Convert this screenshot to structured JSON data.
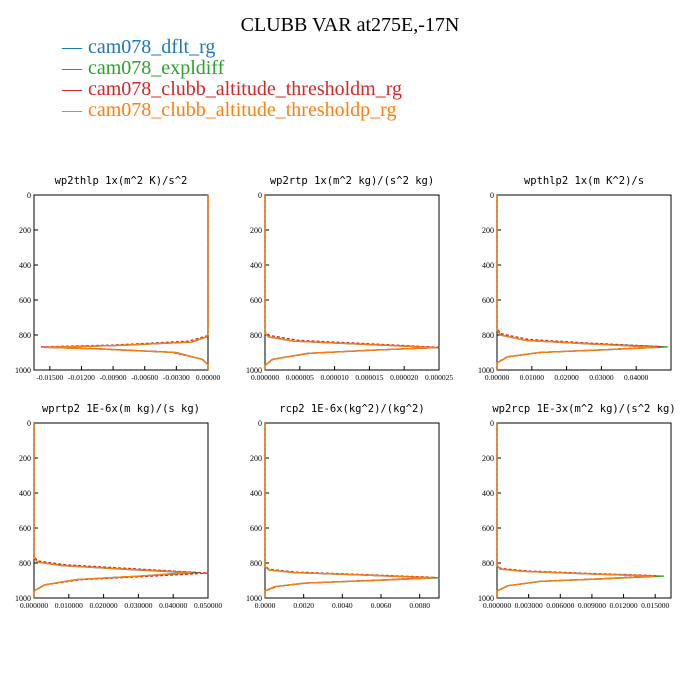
{
  "title": "CLUBB VAR at275E,-17N",
  "legend": [
    {
      "label": "cam078_dflt_rg",
      "color": "#1f77b4"
    },
    {
      "label": "cam078_expldiff",
      "color": "#2ca02c"
    },
    {
      "label": "cam078_clubb_altitude_thresholdm_rg",
      "color": "#d62728"
    },
    {
      "label": "cam078_clubb_altitude_thresholdp_rg",
      "color": "#ff7f0e"
    }
  ],
  "chart_data": [
    {
      "type": "line",
      "title": "wp2thlp  1x(m^2 K)/s^2",
      "xlim": [
        -0.0165,
        0.0
      ],
      "ylim": [
        0,
        1000
      ],
      "xticks": [
        -0.015,
        -0.012,
        -0.009,
        -0.006,
        -0.003,
        0.0
      ],
      "xticklabels": [
        "-0.01500",
        "-0.01200",
        "-0.00900",
        "-0.00600",
        "-0.00300",
        "0.00000"
      ],
      "yticks": [
        0,
        200,
        400,
        600,
        800,
        1000
      ],
      "series": [
        {
          "name": "cam078_dflt_rg",
          "x": [
            0,
            0,
            -0.0001,
            -0.0015,
            -0.0085,
            -0.0152,
            -0.01,
            -0.003,
            -0.0005,
            0,
            0
          ],
          "y": [
            0,
            790,
            810,
            840,
            860,
            870,
            880,
            900,
            940,
            970,
            1000
          ]
        },
        {
          "name": "cam078_expldiff",
          "x": [
            0,
            0,
            -0.0001,
            -0.0015,
            -0.0088,
            -0.0155,
            -0.0105,
            -0.0032,
            -0.0005,
            0,
            0
          ],
          "y": [
            0,
            790,
            810,
            840,
            860,
            870,
            880,
            900,
            940,
            970,
            1000
          ]
        },
        {
          "name": "cam078_clubb_altitude_thresholdm_rg",
          "x": [
            0,
            0,
            -0.0001,
            -0.0018,
            -0.009,
            -0.0158,
            -0.0108,
            -0.0035,
            -0.0006,
            0,
            0
          ],
          "y": [
            0,
            785,
            805,
            835,
            858,
            868,
            878,
            898,
            938,
            968,
            1000
          ]
        },
        {
          "name": "cam078_clubb_altitude_thresholdp_rg",
          "x": [
            0,
            0,
            -0.0001,
            -0.0016,
            -0.0087,
            -0.0154,
            -0.0103,
            -0.0031,
            -0.0005,
            0,
            0
          ],
          "y": [
            0,
            790,
            810,
            840,
            860,
            870,
            880,
            900,
            940,
            970,
            1000
          ]
        }
      ]
    },
    {
      "type": "line",
      "title": "wp2rtp  1x(m^2 kg)/(s^2 kg)",
      "xlim": [
        0.0,
        2.5e-05
      ],
      "ylim": [
        0,
        1000
      ],
      "xticks": [
        0.0,
        5e-06,
        1e-05,
        1.5e-05,
        2e-05,
        2.5e-05
      ],
      "xticklabels": [
        "0.000000",
        "0.000005",
        "0.000010",
        "0.000015",
        "0.000020",
        "0.000025"
      ],
      "yticks": [
        0,
        200,
        400,
        600,
        800,
        1000
      ],
      "series": [
        {
          "name": "cam078_dflt_rg",
          "x": [
            0,
            0,
            5e-07,
            4e-06,
            1.5e-05,
            2.45e-05,
            1.6e-05,
            6e-06,
            1e-06,
            0,
            0
          ],
          "y": [
            0,
            790,
            810,
            835,
            855,
            872,
            885,
            905,
            940,
            975,
            1000
          ]
        },
        {
          "name": "cam078_expldiff",
          "x": [
            0,
            0,
            5e-07,
            4.2e-06,
            1.52e-05,
            2.48e-05,
            1.65e-05,
            6.2e-06,
            1e-06,
            0,
            0
          ],
          "y": [
            0,
            790,
            810,
            835,
            855,
            872,
            885,
            905,
            940,
            975,
            1000
          ]
        },
        {
          "name": "cam078_clubb_altitude_thresholdm_rg",
          "x": [
            0,
            0,
            6e-07,
            4.8e-06,
            1.58e-05,
            2.52e-05,
            1.7e-05,
            6.6e-06,
            1.2e-06,
            0,
            0
          ],
          "y": [
            0,
            780,
            802,
            830,
            852,
            870,
            884,
            904,
            938,
            972,
            1000
          ]
        },
        {
          "name": "cam078_clubb_altitude_thresholdp_rg",
          "x": [
            0,
            0,
            5e-07,
            4.1e-06,
            1.51e-05,
            2.46e-05,
            1.62e-05,
            6.1e-06,
            1e-06,
            0,
            0
          ],
          "y": [
            0,
            790,
            810,
            835,
            855,
            872,
            885,
            905,
            940,
            975,
            1000
          ]
        }
      ]
    },
    {
      "type": "line",
      "title": "wpthlp2  1x(m K^2)/s",
      "xlim": [
        0.0,
        0.05
      ],
      "ylim": [
        0,
        1000
      ],
      "xticks": [
        0.0,
        0.01,
        0.02,
        0.03,
        0.04
      ],
      "xticklabels": [
        "0.00000",
        "0.01000",
        "0.02000",
        "0.03000",
        "0.04000"
      ],
      "yticks": [
        0,
        200,
        400,
        600,
        800,
        1000
      ],
      "series": [
        {
          "name": "cam078_dflt_rg",
          "x": [
            0,
            0,
            0.001,
            0.008,
            0.026,
            0.046,
            0.03,
            0.012,
            0.003,
            0,
            0
          ],
          "y": [
            0,
            770,
            800,
            830,
            850,
            870,
            885,
            900,
            925,
            960,
            1000
          ]
        },
        {
          "name": "cam078_expldiff",
          "x": [
            0,
            0,
            0.001,
            0.008,
            0.027,
            0.049,
            0.031,
            0.012,
            0.003,
            0,
            0
          ],
          "y": [
            0,
            770,
            800,
            830,
            850,
            868,
            885,
            900,
            925,
            960,
            1000
          ]
        },
        {
          "name": "cam078_clubb_altitude_thresholdm_rg",
          "x": [
            0,
            0,
            0.001,
            0.009,
            0.028,
            0.047,
            0.032,
            0.013,
            0.003,
            0,
            0
          ],
          "y": [
            0,
            760,
            792,
            825,
            848,
            866,
            883,
            899,
            924,
            958,
            1000
          ]
        },
        {
          "name": "cam078_clubb_altitude_thresholdp_rg",
          "x": [
            0,
            0,
            0.001,
            0.008,
            0.026,
            0.046,
            0.03,
            0.012,
            0.003,
            0,
            0
          ],
          "y": [
            0,
            770,
            800,
            830,
            850,
            870,
            885,
            900,
            925,
            960,
            1000
          ]
        }
      ]
    },
    {
      "type": "line",
      "title": "wprtp2  1E-6x(m kg)/(s kg)",
      "xlim": [
        0.0,
        0.05
      ],
      "ylim": [
        0,
        1000
      ],
      "xticks": [
        0.0,
        0.01,
        0.02,
        0.03,
        0.04,
        0.05
      ],
      "xticklabels": [
        "0.000000",
        "0.010000",
        "0.020000",
        "0.030000",
        "0.040000",
        "0.050000"
      ],
      "yticks": [
        0,
        200,
        400,
        600,
        800,
        1000
      ],
      "series": [
        {
          "name": "cam078_dflt_rg",
          "x": [
            0,
            0,
            0.001,
            0.008,
            0.025,
            0.044,
            0.03,
            0.012,
            0.003,
            0,
            0
          ],
          "y": [
            0,
            770,
            795,
            815,
            835,
            855,
            875,
            895,
            925,
            960,
            1000
          ]
        },
        {
          "name": "cam078_expldiff",
          "x": [
            0,
            0,
            0.001,
            0.009,
            0.027,
            0.047,
            0.031,
            0.012,
            0.003,
            0,
            0
          ],
          "y": [
            0,
            770,
            795,
            815,
            835,
            855,
            875,
            895,
            925,
            960,
            1000
          ]
        },
        {
          "name": "cam078_clubb_altitude_thresholdm_rg",
          "x": [
            0,
            0,
            0.001,
            0.009,
            0.028,
            0.05,
            0.033,
            0.013,
            0.003,
            0,
            0
          ],
          "y": [
            0,
            760,
            788,
            810,
            832,
            858,
            876,
            896,
            926,
            960,
            1000
          ]
        },
        {
          "name": "cam078_clubb_altitude_thresholdp_rg",
          "x": [
            0,
            0,
            0.001,
            0.008,
            0.026,
            0.045,
            0.03,
            0.012,
            0.003,
            0,
            0
          ],
          "y": [
            0,
            770,
            795,
            815,
            835,
            855,
            875,
            895,
            925,
            960,
            1000
          ]
        }
      ]
    },
    {
      "type": "line",
      "title": "rcp2  1E-6x(kg^2)/(kg^2)",
      "xlim": [
        0.0,
        0.009
      ],
      "ylim": [
        0,
        1000
      ],
      "xticks": [
        0.0,
        0.002,
        0.004,
        0.006,
        0.008
      ],
      "xticklabels": [
        "0.0000",
        "0.0020",
        "0.0040",
        "0.0060",
        "0.0080"
      ],
      "yticks": [
        0,
        200,
        400,
        600,
        800,
        1000
      ],
      "series": [
        {
          "name": "cam078_dflt_rg",
          "x": [
            0,
            0,
            0.0002,
            0.0015,
            0.0048,
            0.0086,
            0.0055,
            0.002,
            0.0005,
            0,
            0
          ],
          "y": [
            0,
            820,
            840,
            855,
            868,
            885,
            900,
            915,
            935,
            960,
            1000
          ]
        },
        {
          "name": "cam078_expldiff",
          "x": [
            0,
            0,
            0.0002,
            0.0016,
            0.005,
            0.009,
            0.0057,
            0.0021,
            0.0005,
            0,
            0
          ],
          "y": [
            0,
            820,
            840,
            855,
            868,
            885,
            900,
            915,
            935,
            960,
            1000
          ]
        },
        {
          "name": "cam078_clubb_altitude_thresholdm_rg",
          "x": [
            0,
            0,
            0.0002,
            0.0016,
            0.005,
            0.0088,
            0.0058,
            0.0022,
            0.0006,
            0,
            0
          ],
          "y": [
            0,
            815,
            836,
            852,
            866,
            882,
            898,
            914,
            934,
            960,
            1000
          ]
        },
        {
          "name": "cam078_clubb_altitude_thresholdp_rg",
          "x": [
            0,
            0,
            0.0002,
            0.0015,
            0.0049,
            0.0087,
            0.0056,
            0.002,
            0.0005,
            0,
            0
          ],
          "y": [
            0,
            820,
            840,
            855,
            868,
            885,
            900,
            915,
            935,
            960,
            1000
          ]
        }
      ]
    },
    {
      "type": "line",
      "title": "wp2rcp  1E-3x(m^2 kg)/(s^2 kg)",
      "xlim": [
        0.0,
        0.0165
      ],
      "ylim": [
        0,
        1000
      ],
      "xticks": [
        0.0,
        0.003,
        0.006,
        0.009,
        0.012,
        0.015
      ],
      "xticklabels": [
        "0.000000",
        "0.003000",
        "0.006000",
        "0.009000",
        "0.012000",
        "0.015000"
      ],
      "yticks": [
        0,
        200,
        400,
        600,
        800,
        1000
      ],
      "series": [
        {
          "name": "cam078_dflt_rg",
          "x": [
            0,
            0,
            0.0003,
            0.0025,
            0.0085,
            0.0148,
            0.01,
            0.004,
            0.001,
            0,
            0
          ],
          "y": [
            0,
            815,
            835,
            848,
            862,
            875,
            890,
            905,
            930,
            960,
            1000
          ]
        },
        {
          "name": "cam078_expldiff",
          "x": [
            0,
            0,
            0.0003,
            0.0026,
            0.0088,
            0.0158,
            0.0103,
            0.0041,
            0.001,
            0,
            0
          ],
          "y": [
            0,
            815,
            835,
            848,
            862,
            875,
            890,
            905,
            930,
            960,
            1000
          ]
        },
        {
          "name": "cam078_clubb_altitude_thresholdm_rg",
          "x": [
            0,
            0,
            0.0003,
            0.0027,
            0.009,
            0.015,
            0.0105,
            0.0043,
            0.0011,
            0,
            0
          ],
          "y": [
            0,
            808,
            830,
            845,
            860,
            872,
            888,
            904,
            929,
            960,
            1000
          ]
        },
        {
          "name": "cam078_clubb_altitude_thresholdp_rg",
          "x": [
            0,
            0,
            0.0003,
            0.0025,
            0.0086,
            0.0149,
            0.0101,
            0.004,
            0.001,
            0,
            0
          ],
          "y": [
            0,
            815,
            835,
            848,
            862,
            875,
            890,
            905,
            930,
            960,
            1000
          ]
        }
      ]
    }
  ]
}
